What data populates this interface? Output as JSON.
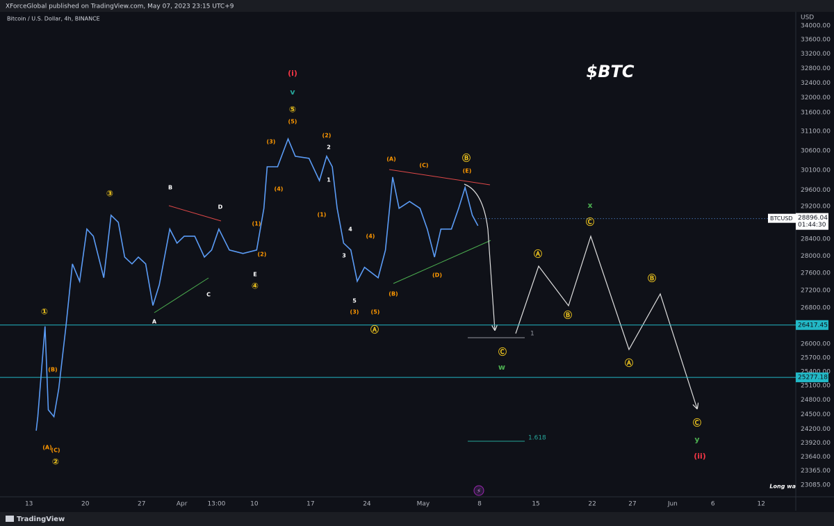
{
  "header": {
    "published": "XForceGlobal published on TradingView.com, May 07, 2023 23:15 UTC+9",
    "symbol": "Bitcoin / U.S. Dollar, 4h, BINANCE",
    "brand": "TradingView"
  },
  "chart_data": {
    "type": "line",
    "title": "$BTC",
    "y_unit": "USD",
    "log_scale": true,
    "grid": false,
    "color": "#5b9cf6",
    "x": [
      13.9,
      14.1,
      15.0,
      15.4,
      16.1,
      16.7,
      17.6,
      18.4,
      19.3,
      20.2,
      21.0,
      22.3,
      23.2,
      24.1,
      24.9,
      25.8,
      26.6,
      27.5,
      28.4,
      29.2,
      30.5,
      31.4,
      32.3,
      33.6,
      34.8,
      35.7,
      36.6,
      37.9,
      39.6,
      41.3,
      42.2,
      42.6,
      43.9,
      45.2,
      46.1,
      47.8,
      49.1,
      50.0,
      50.7,
      51.3,
      52.1,
      53.0,
      53.8,
      54.7,
      56.4,
      57.3,
      58.2,
      59.0,
      60.3,
      61.6,
      62.5,
      63.4,
      64.2,
      65.5,
      66.4,
      67.2,
      68.1,
      68.8
    ],
    "values": [
      24167,
      24453,
      26388,
      24595,
      24453,
      25031,
      26388,
      27815,
      27410,
      28642,
      28472,
      27492,
      28978,
      28808,
      27975,
      27815,
      27975,
      27815,
      26857,
      27329,
      28642,
      28305,
      28472,
      28472,
      27975,
      28142,
      28642,
      28142,
      28060,
      28142,
      29148,
      30188,
      30188,
      30906,
      30456,
      30404,
      29838,
      30456,
      30188,
      29148,
      28305,
      28142,
      27410,
      27734,
      27492,
      28142,
      29927,
      29148,
      29318,
      29148,
      28642,
      27975,
      28642,
      28642,
      29148,
      29665,
      28978,
      28723
    ],
    "xlim": [
      9.4,
      108.3
    ],
    "xticks": [
      {
        "value": 13,
        "label": "13"
      },
      {
        "value": 20,
        "label": "20"
      },
      {
        "value": 27,
        "label": "27"
      },
      {
        "value": 32,
        "label": "Apr"
      },
      {
        "value": 36.3,
        "label": "13:00"
      },
      {
        "value": 41,
        "label": "10"
      },
      {
        "value": 48,
        "label": "17"
      },
      {
        "value": 55,
        "label": "24"
      },
      {
        "value": 62,
        "label": "May"
      },
      {
        "value": 69,
        "label": "8"
      },
      {
        "value": 76,
        "label": "15"
      },
      {
        "value": 83,
        "label": "22"
      },
      {
        "value": 88,
        "label": "27"
      },
      {
        "value": 93,
        "label": "Jun"
      },
      {
        "value": 98,
        "label": "6"
      },
      {
        "value": 104,
        "label": "12"
      }
    ],
    "ylim": [
      22856,
      34400
    ],
    "yticks": [
      {
        "value": 34000,
        "label": "34000.00"
      },
      {
        "value": 33600,
        "label": "33600.00"
      },
      {
        "value": 33200,
        "label": "33200.00"
      },
      {
        "value": 32800,
        "label": "32800.00"
      },
      {
        "value": 32400,
        "label": "32400.00"
      },
      {
        "value": 32000,
        "label": "32000.00"
      },
      {
        "value": 31600,
        "label": "31600.00"
      },
      {
        "value": 31100,
        "label": "31100.00"
      },
      {
        "value": 30600,
        "label": "30600.00"
      },
      {
        "value": 30100,
        "label": "30100.00"
      },
      {
        "value": 29600,
        "label": "29600.00"
      },
      {
        "value": 29200,
        "label": "29200.00"
      },
      {
        "value": 28400,
        "label": "28400.00"
      },
      {
        "value": 28000,
        "label": "28000.00"
      },
      {
        "value": 27600,
        "label": "27600.00"
      },
      {
        "value": 27200,
        "label": "27200.00"
      },
      {
        "value": 26800,
        "label": "26800.00"
      },
      {
        "value": 26000,
        "label": "26000.00"
      },
      {
        "value": 25700,
        "label": "25700.00"
      },
      {
        "value": 25400,
        "label": "25400.00"
      },
      {
        "value": 25100,
        "label": "25100.00"
      },
      {
        "value": 24800,
        "label": "24800.00"
      },
      {
        "value": 24500,
        "label": "24500.00"
      },
      {
        "value": 24200,
        "label": "24200.00"
      },
      {
        "value": 23920,
        "label": "23920.00"
      },
      {
        "value": 23640,
        "label": "23640.00"
      },
      {
        "value": 23365,
        "label": "23365.00"
      },
      {
        "value": 23085,
        "label": "23085.00"
      }
    ],
    "levels": [
      {
        "value": 26417.45,
        "color": "#22b8c6"
      },
      {
        "value": 25277.18,
        "color": "#22b8c6"
      }
    ],
    "last_price": {
      "name": "BTCUSD",
      "value": 28896.04,
      "countdown": "01:44:30"
    },
    "fib_labels": [
      "1",
      "1.618"
    ],
    "footnote": "Long wa",
    "annotations": [
      {
        "text": "①",
        "color": "#f0c61e"
      },
      {
        "text": "(B)",
        "color": "#ff9800"
      },
      {
        "text": "(A)",
        "color": "#ff9800"
      },
      {
        "text": "(C)",
        "color": "#ff9800"
      },
      {
        "text": "②",
        "color": "#f0c61e"
      },
      {
        "text": "③",
        "color": "#f0c61e"
      },
      {
        "text": "B",
        "color": "#ffffff"
      },
      {
        "text": "D",
        "color": "#ffffff"
      },
      {
        "text": "A",
        "color": "#ffffff"
      },
      {
        "text": "C",
        "color": "#ffffff"
      },
      {
        "text": "(1)",
        "color": "#ff9800"
      },
      {
        "text": "(2)",
        "color": "#ff9800"
      },
      {
        "text": "E",
        "color": "#ffffff"
      },
      {
        "text": "④",
        "color": "#f0c61e"
      },
      {
        "text": "(3)",
        "color": "#ff9800"
      },
      {
        "text": "(4)",
        "color": "#ff9800"
      },
      {
        "text": "(5)",
        "color": "#ff9800"
      },
      {
        "text": "⑤",
        "color": "#f0c61e"
      },
      {
        "text": "v",
        "color": "#26a69a"
      },
      {
        "text": "(i)",
        "color": "#f23645"
      },
      {
        "text": "(2)",
        "color": "#ff9800"
      },
      {
        "text": "2",
        "color": "#ffffff"
      },
      {
        "text": "1",
        "color": "#ffffff"
      },
      {
        "text": "(1)",
        "color": "#ff9800"
      },
      {
        "text": "4",
        "color": "#ffffff"
      },
      {
        "text": "3",
        "color": "#ffffff"
      },
      {
        "text": "(4)",
        "color": "#ff9800"
      },
      {
        "text": "5",
        "color": "#ffffff"
      },
      {
        "text": "(3)",
        "color": "#ff9800"
      },
      {
        "text": "(5)",
        "color": "#ff9800"
      },
      {
        "text": "Ⓐ",
        "color": "#f0c61e"
      },
      {
        "text": "(A)",
        "color": "#ff9800"
      },
      {
        "text": "(C)",
        "color": "#ff9800"
      },
      {
        "text": "Ⓑ",
        "color": "#f0c61e"
      },
      {
        "text": "(E)",
        "color": "#ff9800"
      },
      {
        "text": "(D)",
        "color": "#ff9800"
      },
      {
        "text": "(B)",
        "color": "#ff9800"
      },
      {
        "text": "Ⓒ",
        "color": "#f0c61e"
      },
      {
        "text": "w",
        "color": "#4caf50"
      },
      {
        "text": "Ⓐ",
        "color": "#f0c61e"
      },
      {
        "text": "Ⓑ",
        "color": "#f0c61e"
      },
      {
        "text": "x",
        "color": "#4caf50"
      },
      {
        "text": "Ⓒ",
        "color": "#f0c61e"
      },
      {
        "text": "Ⓑ",
        "color": "#f0c61e"
      },
      {
        "text": "Ⓐ",
        "color": "#f0c61e"
      },
      {
        "text": "Ⓒ",
        "color": "#f0c61e"
      },
      {
        "text": "y",
        "color": "#4caf50"
      },
      {
        "text": "(ii)",
        "color": "#f23645"
      }
    ]
  }
}
